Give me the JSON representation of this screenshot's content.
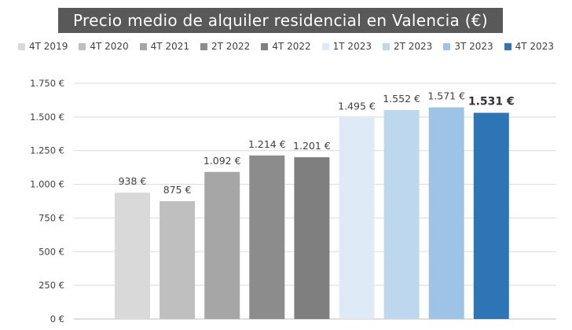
{
  "chart_data": {
    "type": "bar",
    "title": "Precio medio de alquiler residencial en Valencia (€)",
    "categories": [
      "4T 2019",
      "4T 2020",
      "4T 2021",
      "2T 2022",
      "4T 2022",
      "1T 2023",
      "2T 2023",
      "3T 2023",
      "4T 2023"
    ],
    "values": [
      938,
      875,
      1092,
      1214,
      1201,
      1495,
      1552,
      1571,
      1531
    ],
    "value_labels": [
      "938 €",
      "875 €",
      "1.092 €",
      "1.214 €",
      "1.201 €",
      "1.495 €",
      "1.552 €",
      "1.571 €",
      "1.531 €"
    ],
    "bold_label_index": 8,
    "colors": [
      "#d9d9d9",
      "#bfbfbf",
      "#a6a6a6",
      "#8c8c8c",
      "#7f7f7f",
      "#deebf7",
      "#bdd7ee",
      "#9dc3e6",
      "#2e75b6"
    ],
    "ylim": [
      0,
      1750
    ],
    "yticks": [
      0,
      250,
      500,
      750,
      1000,
      1250,
      1500,
      1750
    ],
    "ytick_labels": [
      "0 €",
      "250 €",
      "500 €",
      "750 €",
      "1.000 €",
      "1.250 €",
      "1.500 €",
      "1.750 €"
    ],
    "xlabel": "",
    "ylabel": "",
    "legend_position": "top",
    "grid": true
  }
}
